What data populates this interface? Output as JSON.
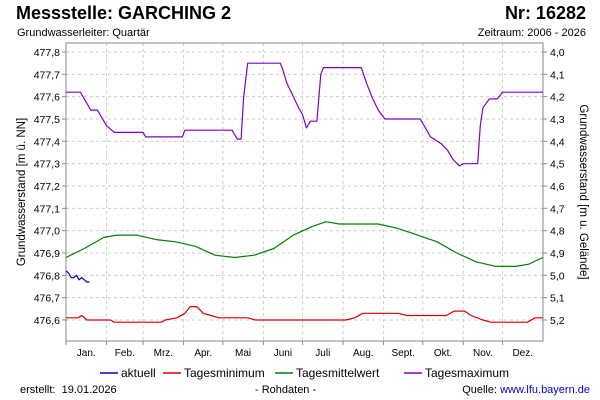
{
  "header": {
    "station": "Messstelle: GARCHING 2",
    "number": "Nr: 16282",
    "aquifer": "Grundwasserleiter: Quartär",
    "period": "Zeitraum: 2006 - 2026"
  },
  "footer": {
    "created_label": "erstellt:",
    "created_date": "19.01.2026",
    "raw_data": "- Rohdaten -",
    "source_label": "Quelle:",
    "source_link": "www.lfu.bayern.de"
  },
  "chart_data": {
    "type": "line",
    "ylabel": "Grundwasserstand [m ü. NN]",
    "ylabel_right": "Grundwasserstand [m u. Gelände]",
    "ylim": [
      476.5,
      477.82
    ],
    "yticks": [
      "477,8",
      "477,7",
      "477,6",
      "477,5",
      "477,4",
      "477,3",
      "477,2",
      "477,1",
      "477,0",
      "476,9",
      "476,8",
      "476,7",
      "476,6"
    ],
    "yticks_right": [
      "4,0",
      "4,1",
      "4,2",
      "4,3",
      "4,4",
      "4,5",
      "4,6",
      "4,7",
      "4,8",
      "4,9",
      "5,0",
      "5,1",
      "5,2"
    ],
    "x_unit": "day_of_year",
    "xlim": [
      1,
      366
    ],
    "months": [
      "Jan.",
      "Feb.",
      "Mrz.",
      "Apr.",
      "Mai",
      "Juni",
      "Juli",
      "Aug.",
      "Sept.",
      "Okt.",
      "Nov.",
      "Dez."
    ],
    "grid": true,
    "legend_position": "bottom",
    "series": [
      {
        "name": "aktuell",
        "color": "#0000cc",
        "points": [
          [
            1,
            476.82
          ],
          [
            3,
            476.81
          ],
          [
            5,
            476.79
          ],
          [
            7,
            476.79
          ],
          [
            9,
            476.8
          ],
          [
            11,
            476.78
          ],
          [
            13,
            476.79
          ],
          [
            15,
            476.78
          ],
          [
            17,
            476.77
          ],
          [
            19,
            476.77
          ]
        ]
      },
      {
        "name": "Tagesminimum",
        "color": "#dd0000",
        "points": [
          [
            1,
            476.61
          ],
          [
            10,
            476.61
          ],
          [
            13,
            476.62
          ],
          [
            17,
            476.6
          ],
          [
            35,
            476.6
          ],
          [
            38,
            476.59
          ],
          [
            74,
            476.59
          ],
          [
            77,
            476.6
          ],
          [
            86,
            476.61
          ],
          [
            92,
            476.63
          ],
          [
            96,
            476.66
          ],
          [
            101,
            476.66
          ],
          [
            106,
            476.63
          ],
          [
            112,
            476.62
          ],
          [
            118,
            476.61
          ],
          [
            140,
            476.61
          ],
          [
            146,
            476.6
          ],
          [
            215,
            476.6
          ],
          [
            222,
            476.61
          ],
          [
            228,
            476.63
          ],
          [
            255,
            476.63
          ],
          [
            262,
            476.62
          ],
          [
            292,
            476.62
          ],
          [
            298,
            476.64
          ],
          [
            306,
            476.64
          ],
          [
            311,
            476.62
          ],
          [
            320,
            476.6
          ],
          [
            326,
            476.59
          ],
          [
            354,
            476.59
          ],
          [
            360,
            476.61
          ],
          [
            366,
            476.61
          ]
        ]
      },
      {
        "name": "Tagesmittelwert",
        "color": "#008000",
        "points": [
          [
            1,
            476.88
          ],
          [
            15,
            476.92
          ],
          [
            30,
            476.97
          ],
          [
            40,
            476.98
          ],
          [
            55,
            476.98
          ],
          [
            70,
            476.96
          ],
          [
            85,
            476.95
          ],
          [
            100,
            476.93
          ],
          [
            115,
            476.89
          ],
          [
            130,
            476.88
          ],
          [
            145,
            476.89
          ],
          [
            160,
            476.92
          ],
          [
            175,
            476.98
          ],
          [
            190,
            477.02
          ],
          [
            200,
            477.04
          ],
          [
            210,
            477.03
          ],
          [
            225,
            477.03
          ],
          [
            240,
            477.03
          ],
          [
            255,
            477.01
          ],
          [
            270,
            476.98
          ],
          [
            285,
            476.95
          ],
          [
            300,
            476.9
          ],
          [
            315,
            476.86
          ],
          [
            330,
            476.84
          ],
          [
            345,
            476.84
          ],
          [
            355,
            476.85
          ],
          [
            366,
            476.88
          ]
        ]
      },
      {
        "name": "Tagesmaximum",
        "color": "#8000cc",
        "points": [
          [
            1,
            477.62
          ],
          [
            12,
            477.62
          ],
          [
            15,
            477.59
          ],
          [
            20,
            477.54
          ],
          [
            25,
            477.54
          ],
          [
            28,
            477.51
          ],
          [
            32,
            477.47
          ],
          [
            36,
            477.45
          ],
          [
            38,
            477.44
          ],
          [
            60,
            477.44
          ],
          [
            62,
            477.42
          ],
          [
            90,
            477.42
          ],
          [
            92,
            477.45
          ],
          [
            128,
            477.45
          ],
          [
            130,
            477.43
          ],
          [
            132,
            477.41
          ],
          [
            135,
            477.41
          ],
          [
            137,
            477.6
          ],
          [
            140,
            477.75
          ],
          [
            165,
            477.75
          ],
          [
            167,
            477.72
          ],
          [
            170,
            477.66
          ],
          [
            175,
            477.6
          ],
          [
            179,
            477.55
          ],
          [
            182,
            477.52
          ],
          [
            185,
            477.46
          ],
          [
            188,
            477.49
          ],
          [
            193,
            477.49
          ],
          [
            196,
            477.7
          ],
          [
            198,
            477.73
          ],
          [
            227,
            477.73
          ],
          [
            231,
            477.66
          ],
          [
            235,
            477.6
          ],
          [
            240,
            477.54
          ],
          [
            245,
            477.5
          ],
          [
            272,
            477.5
          ],
          [
            276,
            477.46
          ],
          [
            280,
            477.42
          ],
          [
            288,
            477.39
          ],
          [
            293,
            477.36
          ],
          [
            297,
            477.32
          ],
          [
            302,
            477.29
          ],
          [
            305,
            477.3
          ],
          [
            316,
            477.3
          ],
          [
            318,
            477.47
          ],
          [
            320,
            477.55
          ],
          [
            325,
            477.59
          ],
          [
            331,
            477.59
          ],
          [
            335,
            477.62
          ],
          [
            366,
            477.62
          ]
        ]
      }
    ]
  }
}
